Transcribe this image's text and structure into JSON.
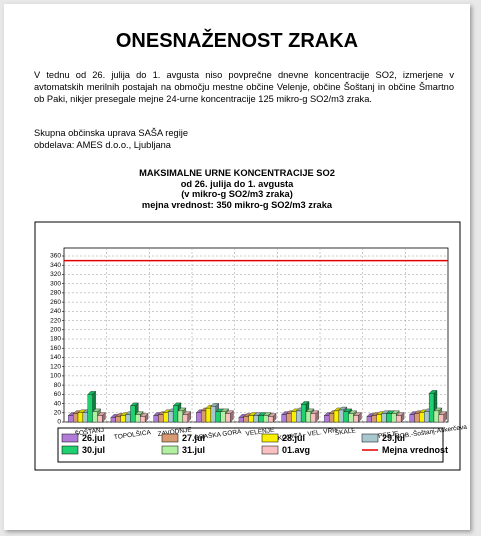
{
  "document": {
    "title": "ONESNAŽENOST ZRAKA",
    "paragraph": "V tednu od 26. julija do 1. avgusta niso povprečne dnevne koncentracije SO2, izmerjene v avtomatskih merilnih postajah na območju mestne občine Velenje, občine Šoštanj in občine Šmartno ob Paki, nikjer presegale mejne 24-urne koncentracije 125 mikro-g SO2/m3 zraka.",
    "credits": [
      "Skupna občinska uprava SAŠA regije",
      "obdelava: AMES d.o.o., Ljubljana"
    ]
  },
  "chart_data": {
    "type": "bar3d",
    "title": [
      "MAKSIMALNE URNE KONCENTRACIJE SO2",
      "od 26. julija do 1. avgusta",
      "(v mikro-g SO2/m3 zraka)",
      "mejna vrednost: 350 mikro-g SO2/m3 zraka"
    ],
    "categories": [
      "ŠOŠTANJ",
      "TOPOLŠICA",
      "ZAVODNJE",
      "GRAŠKA GORA",
      "VELENJE",
      "LOKOVICA - VEL. VRH",
      "ŠKALE",
      "PESJE",
      "MOB.-Šoštanj-Aškerčeva"
    ],
    "series": [
      {
        "name": "26.jul",
        "color": "#b07cd8",
        "values": [
          14,
          10,
          14,
          20,
          10,
          16,
          14,
          12,
          16
        ]
      },
      {
        "name": "27.jul",
        "color": "#d89a70",
        "values": [
          18,
          12,
          16,
          24,
          12,
          18,
          18,
          14,
          18
        ]
      },
      {
        "name": "28.jul",
        "color": "#f8f000",
        "values": [
          20,
          14,
          20,
          30,
          14,
          22,
          24,
          16,
          20
        ]
      },
      {
        "name": "29.jul",
        "color": "#a8c8d0",
        "values": [
          20,
          16,
          22,
          34,
          14,
          24,
          26,
          18,
          22
        ]
      },
      {
        "name": "30.jul",
        "color": "#20d070",
        "values": [
          60,
          35,
          35,
          22,
          14,
          38,
          22,
          18,
          62
        ]
      },
      {
        "name": "31.jul",
        "color": "#b0f0a0",
        "values": [
          22,
          16,
          24,
          22,
          14,
          22,
          18,
          18,
          24
        ]
      },
      {
        "name": "01.avg",
        "color": "#f8c0c0",
        "values": [
          14,
          12,
          16,
          18,
          12,
          18,
          14,
          14,
          16
        ]
      }
    ],
    "limit": {
      "name": "Mejna vrednost",
      "value": 350,
      "color": "#e00000"
    },
    "ylim": [
      0,
      360
    ],
    "yticks": [
      0,
      20,
      40,
      60,
      80,
      100,
      120,
      140,
      160,
      180,
      200,
      220,
      240,
      260,
      280,
      300,
      320,
      340,
      360
    ],
    "grid": true
  }
}
